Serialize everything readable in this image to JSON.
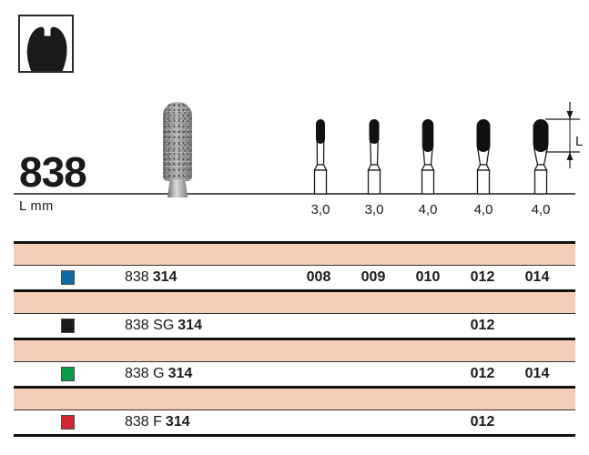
{
  "header": {
    "series_number": "838",
    "unit_label": "L mm",
    "dimension_label": "L",
    "tooth_icon": "molar-crown-icon"
  },
  "diagram": {
    "burs": [
      {
        "size_label": "3,0",
        "head_w": 10,
        "head_h": 27
      },
      {
        "size_label": "3,0",
        "head_w": 11,
        "head_h": 27
      },
      {
        "size_label": "4,0",
        "head_w": 12.5,
        "head_h": 36
      },
      {
        "size_label": "4,0",
        "head_w": 15,
        "head_h": 36
      },
      {
        "size_label": "4,0",
        "head_w": 17,
        "head_h": 36
      }
    ]
  },
  "table": {
    "band_color": "#F4CEB6",
    "rows": [
      {
        "swatch_color": "#0E6CA5",
        "swatch_name": "blue",
        "prefix": "838",
        "bold": "314",
        "values": [
          "008",
          "009",
          "010",
          "012",
          "014"
        ]
      },
      {
        "swatch_color": "#1A1A1A",
        "swatch_name": "black",
        "prefix": "838 SG",
        "bold": "314",
        "values": [
          "",
          "",
          "",
          "012",
          ""
        ]
      },
      {
        "swatch_color": "#0A9B4B",
        "swatch_name": "green",
        "prefix": "838 G",
        "bold": "314",
        "values": [
          "",
          "",
          "",
          "012",
          "014"
        ]
      },
      {
        "swatch_color": "#D0262F",
        "swatch_name": "red",
        "prefix": "838 F",
        "bold": "314",
        "values": [
          "",
          "",
          "",
          "012",
          ""
        ]
      }
    ]
  }
}
